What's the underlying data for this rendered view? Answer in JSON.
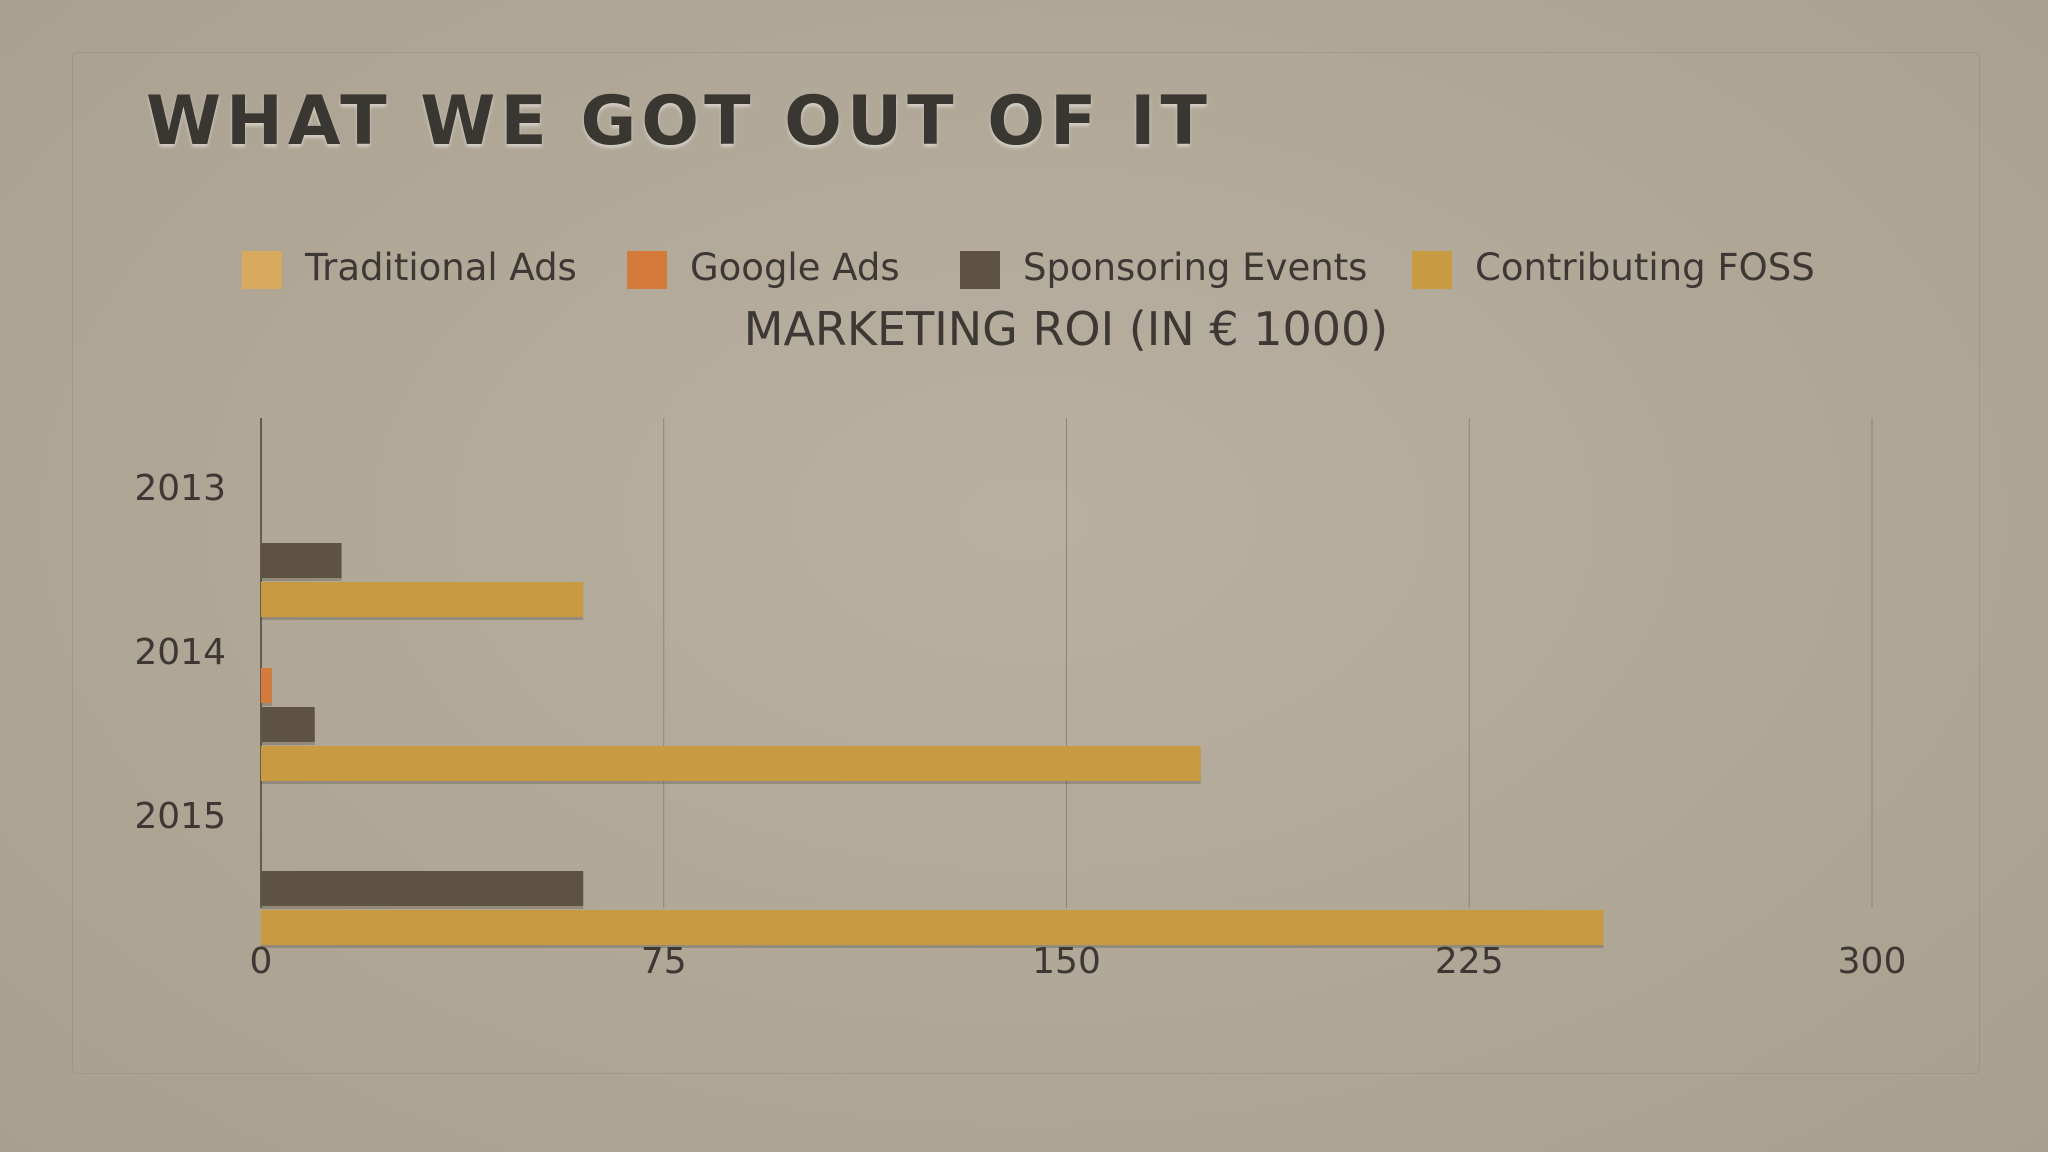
{
  "slide": {
    "title": "WHAT WE GOT OUT OF IT"
  },
  "chart_data": {
    "type": "bar",
    "orientation": "horizontal",
    "title": "MARKETING ROI (IN € 1000)",
    "xlabel": "",
    "ylabel": "",
    "categories": [
      "2013",
      "2014",
      "2015"
    ],
    "series": [
      {
        "name": "Traditional Ads",
        "color": "#d9a960",
        "values": [
          0,
          0,
          0
        ]
      },
      {
        "name": "Google Ads",
        "color": "#d47a3a",
        "values": [
          0,
          2,
          0
        ]
      },
      {
        "name": "Sponsoring Events",
        "color": "#5e5343",
        "values": [
          15,
          10,
          60
        ]
      },
      {
        "name": "Contributing FOSS",
        "color": "#c89a42",
        "values": [
          60,
          175,
          250
        ]
      }
    ],
    "xlim": [
      0,
      300
    ],
    "xticks": [
      "0",
      "75",
      "150",
      "225",
      "300"
    ],
    "grid": "vertical",
    "legend_position": "top"
  }
}
